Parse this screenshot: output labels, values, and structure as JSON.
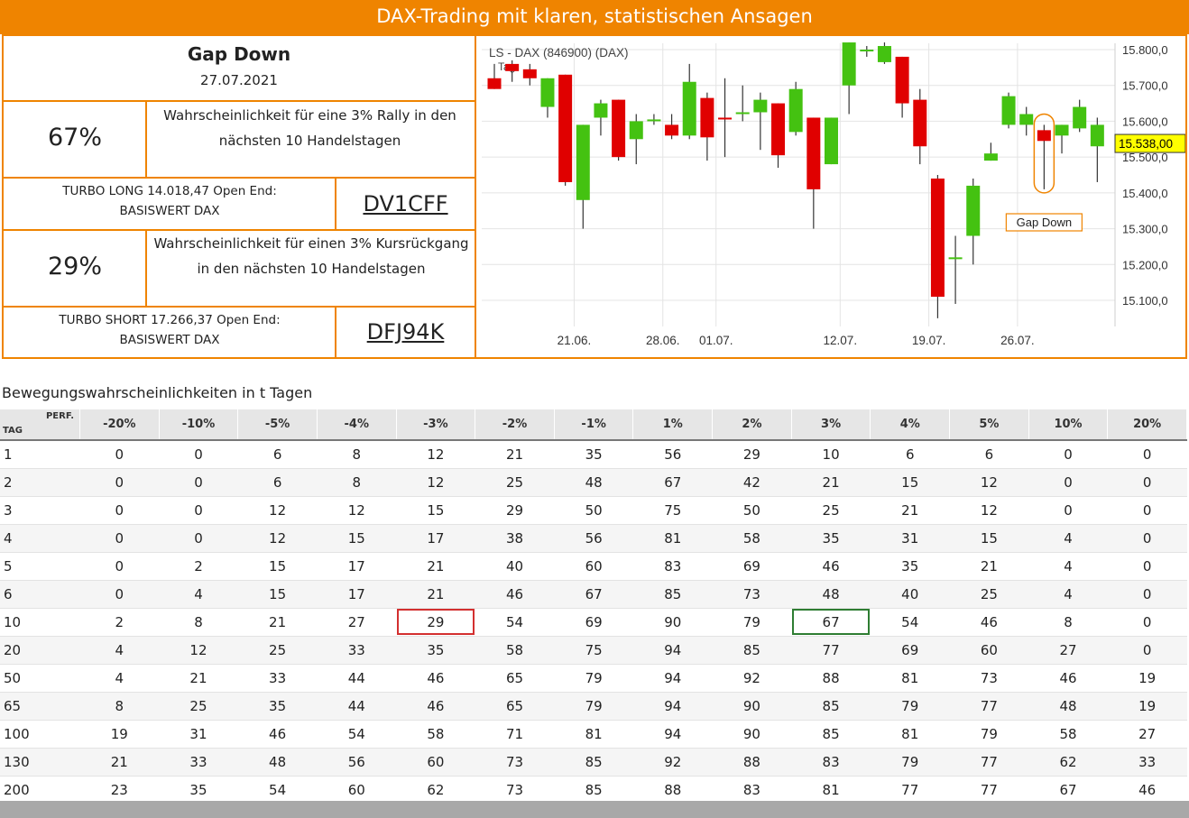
{
  "banner": {
    "title": "DAX-Trading mit klaren, statistischen Ansagen"
  },
  "signal": {
    "name": "Gap Down",
    "date": "27.07.2021",
    "rally_pct": "67%",
    "rally_desc": "Wahrscheinlichkeit für eine 3% Rally in den nächsten 10 Handelstagen",
    "long_turbo": "TURBO LONG 14.018,47 Open End:",
    "long_base": "BASISWERT DAX",
    "long_wkn": "DV1CFF",
    "drop_pct": "29%",
    "drop_desc": "Wahrscheinlichkeit für einen 3% Kursrückgang in den nächsten 10 Handelstagen",
    "short_turbo": "TURBO SHORT 17.266,37 Open End:",
    "short_base": "BASISWERT DAX",
    "short_wkn": "DFJ94K"
  },
  "chart_data": {
    "type": "candlestick",
    "title": "LS - DAX (846900) (DAX)",
    "title_extra": "Tag",
    "annotation": "Gap Down",
    "last_price": "15.538,00",
    "ylim": [
      15050,
      15820
    ],
    "y_ticks": [
      "15.800,0",
      "15.700,0",
      "15.600,0",
      "15.500,0",
      "15.400,0",
      "15.300,0",
      "15.200,0",
      "15.100,0"
    ],
    "y_tick_values": [
      15800,
      15700,
      15600,
      15500,
      15400,
      15300,
      15200,
      15100
    ],
    "x_ticks": [
      "21.06.",
      "28.06.",
      "01.07.",
      "12.07.",
      "19.07.",
      "26.07."
    ],
    "x_tick_index": [
      4.5,
      9.5,
      12.5,
      19.5,
      24.5,
      29.5
    ],
    "colors": {
      "up": "#44c211",
      "down": "#e00000",
      "accent": "#ef8400",
      "price_tag": "#ffff00"
    },
    "candles": [
      {
        "o": 15720,
        "h": 15760,
        "l": 15690,
        "c": 15690
      },
      {
        "o": 15760,
        "h": 15770,
        "l": 15710,
        "c": 15740
      },
      {
        "o": 15745,
        "h": 15760,
        "l": 15700,
        "c": 15720
      },
      {
        "o": 15640,
        "h": 15720,
        "l": 15610,
        "c": 15720
      },
      {
        "o": 15730,
        "h": 15730,
        "l": 15420,
        "c": 15430
      },
      {
        "o": 15380,
        "h": 15590,
        "l": 15300,
        "c": 15590
      },
      {
        "o": 15610,
        "h": 15660,
        "l": 15560,
        "c": 15650
      },
      {
        "o": 15660,
        "h": 15660,
        "l": 15490,
        "c": 15500
      },
      {
        "o": 15550,
        "h": 15620,
        "l": 15480,
        "c": 15600
      },
      {
        "o": 15605,
        "h": 15620,
        "l": 15590,
        "c": 15605
      },
      {
        "o": 15590,
        "h": 15620,
        "l": 15550,
        "c": 15560
      },
      {
        "o": 15560,
        "h": 15760,
        "l": 15550,
        "c": 15710
      },
      {
        "o": 15665,
        "h": 15680,
        "l": 15490,
        "c": 15555
      },
      {
        "o": 15610,
        "h": 15720,
        "l": 15500,
        "c": 15605
      },
      {
        "o": 15620,
        "h": 15700,
        "l": 15600,
        "c": 15625
      },
      {
        "o": 15625,
        "h": 15680,
        "l": 15520,
        "c": 15660
      },
      {
        "o": 15650,
        "h": 15650,
        "l": 15470,
        "c": 15505
      },
      {
        "o": 15570,
        "h": 15710,
        "l": 15560,
        "c": 15690
      },
      {
        "o": 15610,
        "h": 15610,
        "l": 15300,
        "c": 15410
      },
      {
        "o": 15480,
        "h": 15610,
        "l": 15480,
        "c": 15610
      },
      {
        "o": 15700,
        "h": 15820,
        "l": 15620,
        "c": 15820
      },
      {
        "o": 15800,
        "h": 15810,
        "l": 15780,
        "c": 15800
      },
      {
        "o": 15765,
        "h": 15820,
        "l": 15760,
        "c": 15810
      },
      {
        "o": 15780,
        "h": 15780,
        "l": 15610,
        "c": 15650
      },
      {
        "o": 15660,
        "h": 15690,
        "l": 15480,
        "c": 15530
      },
      {
        "o": 15440,
        "h": 15450,
        "l": 15050,
        "c": 15110
      },
      {
        "o": 15220,
        "h": 15280,
        "l": 15090,
        "c": 15220
      },
      {
        "o": 15280,
        "h": 15440,
        "l": 15200,
        "c": 15420
      },
      {
        "o": 15490,
        "h": 15540,
        "l": 15490,
        "c": 15510
      },
      {
        "o": 15590,
        "h": 15680,
        "l": 15580,
        "c": 15670
      },
      {
        "o": 15590,
        "h": 15640,
        "l": 15560,
        "c": 15620
      },
      {
        "o": 15575,
        "h": 15590,
        "l": 15410,
        "c": 15545
      },
      {
        "o": 15560,
        "h": 15590,
        "l": 15510,
        "c": 15590
      },
      {
        "o": 15580,
        "h": 15660,
        "l": 15570,
        "c": 15640
      },
      {
        "o": 15530,
        "h": 15610,
        "l": 15430,
        "c": 15590
      }
    ]
  },
  "table": {
    "title": "Bewegungswahrscheinlichkeiten in t Tagen",
    "corner_perf": "PERF.",
    "corner_tag": "TAG",
    "headers": [
      "-20%",
      "-10%",
      "-5%",
      "-4%",
      "-3%",
      "-2%",
      "-1%",
      "1%",
      "2%",
      "3%",
      "4%",
      "5%",
      "10%",
      "20%"
    ],
    "rows": [
      {
        "t": "1",
        "v": [
          "0",
          "0",
          "6",
          "8",
          "12",
          "21",
          "35",
          "56",
          "29",
          "10",
          "6",
          "6",
          "0",
          "0"
        ]
      },
      {
        "t": "2",
        "v": [
          "0",
          "0",
          "6",
          "8",
          "12",
          "25",
          "48",
          "67",
          "42",
          "21",
          "15",
          "12",
          "0",
          "0"
        ]
      },
      {
        "t": "3",
        "v": [
          "0",
          "0",
          "12",
          "12",
          "15",
          "29",
          "50",
          "75",
          "50",
          "25",
          "21",
          "12",
          "0",
          "0"
        ]
      },
      {
        "t": "4",
        "v": [
          "0",
          "0",
          "12",
          "15",
          "17",
          "38",
          "56",
          "81",
          "58",
          "35",
          "31",
          "15",
          "4",
          "0"
        ]
      },
      {
        "t": "5",
        "v": [
          "0",
          "2",
          "15",
          "17",
          "21",
          "40",
          "60",
          "83",
          "69",
          "46",
          "35",
          "21",
          "4",
          "0"
        ]
      },
      {
        "t": "6",
        "v": [
          "0",
          "4",
          "15",
          "17",
          "21",
          "46",
          "67",
          "85",
          "73",
          "48",
          "40",
          "25",
          "4",
          "0"
        ]
      },
      {
        "t": "10",
        "v": [
          "2",
          "8",
          "21",
          "27",
          "29",
          "54",
          "69",
          "90",
          "79",
          "67",
          "54",
          "46",
          "8",
          "0"
        ]
      },
      {
        "t": "20",
        "v": [
          "4",
          "12",
          "25",
          "33",
          "35",
          "58",
          "75",
          "94",
          "85",
          "77",
          "69",
          "60",
          "27",
          "0"
        ]
      },
      {
        "t": "50",
        "v": [
          "4",
          "21",
          "33",
          "44",
          "46",
          "65",
          "79",
          "94",
          "92",
          "88",
          "81",
          "73",
          "46",
          "19"
        ]
      },
      {
        "t": "65",
        "v": [
          "8",
          "25",
          "35",
          "44",
          "46",
          "65",
          "79",
          "94",
          "90",
          "85",
          "79",
          "77",
          "48",
          "19"
        ]
      },
      {
        "t": "100",
        "v": [
          "19",
          "31",
          "46",
          "54",
          "58",
          "71",
          "81",
          "94",
          "90",
          "85",
          "81",
          "79",
          "58",
          "27"
        ]
      },
      {
        "t": "130",
        "v": [
          "21",
          "33",
          "48",
          "56",
          "60",
          "73",
          "85",
          "92",
          "88",
          "83",
          "79",
          "77",
          "62",
          "33"
        ]
      },
      {
        "t": "200",
        "v": [
          "23",
          "35",
          "54",
          "60",
          "62",
          "73",
          "85",
          "88",
          "83",
          "81",
          "77",
          "77",
          "67",
          "46"
        ]
      }
    ],
    "highlight_red": {
      "row": "10",
      "col": "-3%"
    },
    "highlight_green": {
      "row": "10",
      "col": "3%"
    }
  }
}
